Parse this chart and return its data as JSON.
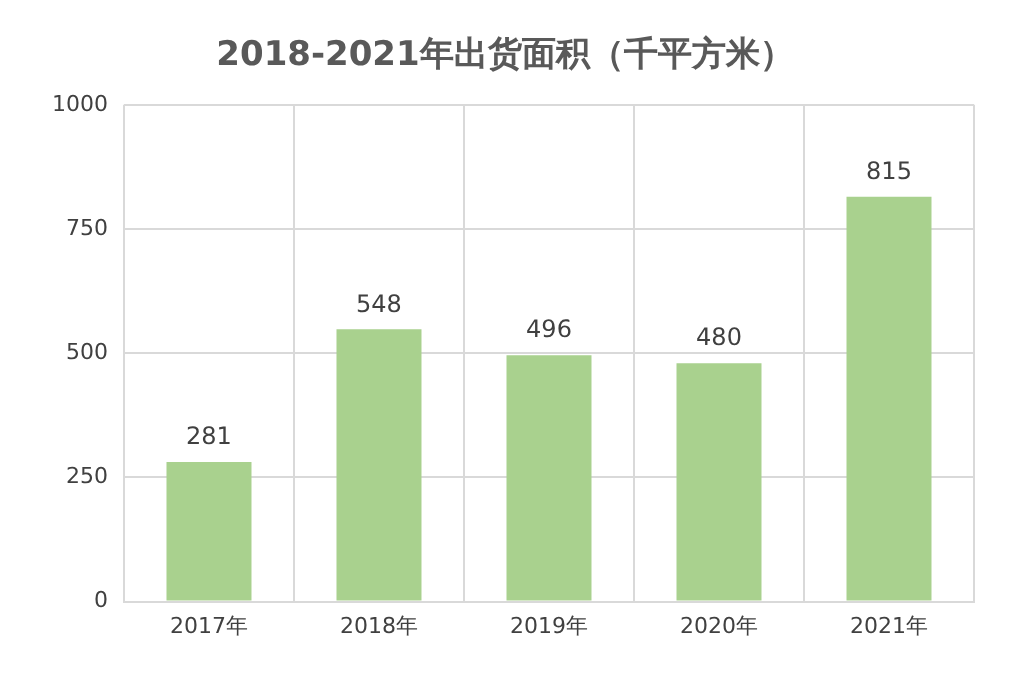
{
  "chart_data": {
    "type": "bar",
    "title": "2018-2021年出货面积（千平方米）",
    "categories": [
      "2017年",
      "2018年",
      "2019年",
      "2020年",
      "2021年"
    ],
    "values": [
      281,
      548,
      496,
      480,
      815
    ],
    "color": "#a9d18e",
    "ylim": [
      0,
      1000
    ],
    "yticks": [
      0,
      250,
      500,
      750,
      1000
    ],
    "grid": true,
    "data_labels": true
  }
}
